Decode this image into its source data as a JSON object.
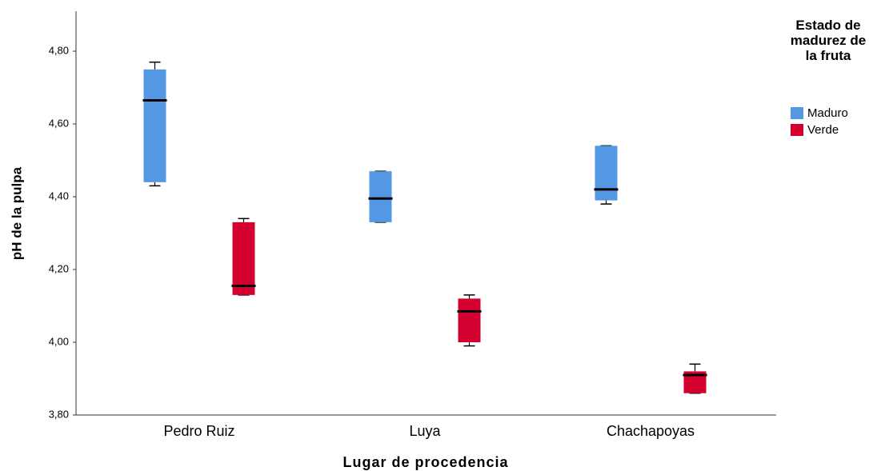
{
  "chart_data": {
    "type": "box",
    "xlabel": "Lugar de procedencia",
    "ylabel": "pH de la pulpa",
    "categories": [
      "Pedro Ruiz",
      "Luya",
      "Chachapoyas"
    ],
    "legend_title": "Estado de madurez de la fruta",
    "legend_position": "upper right",
    "ylim": [
      3.8,
      4.91
    ],
    "yticks": [
      {
        "value": 3.8,
        "label": "3,80"
      },
      {
        "value": 4.0,
        "label": "4,00"
      },
      {
        "value": 4.2,
        "label": "4,20"
      },
      {
        "value": 4.4,
        "label": "4,40"
      },
      {
        "value": 4.6,
        "label": "4,60"
      },
      {
        "value": 4.8,
        "label": "4,80"
      }
    ],
    "series": [
      {
        "name": "Maduro",
        "color": "#5497e3",
        "values": [
          {
            "min": 4.43,
            "q1": 4.44,
            "median": 4.665,
            "q3": 4.75,
            "max": 4.77
          },
          {
            "min": 4.33,
            "q1": 4.33,
            "median": 4.395,
            "q3": 4.47,
            "max": 4.47
          },
          {
            "min": 4.38,
            "q1": 4.39,
            "median": 4.42,
            "q3": 4.54,
            "max": 4.54
          }
        ]
      },
      {
        "name": "Verde",
        "color": "#d4002f",
        "values": [
          {
            "min": 4.13,
            "q1": 4.13,
            "median": 4.155,
            "q3": 4.33,
            "max": 4.34
          },
          {
            "min": 3.99,
            "q1": 4.0,
            "median": 4.085,
            "q3": 4.12,
            "max": 4.13
          },
          {
            "min": 3.86,
            "q1": 3.86,
            "median": 3.91,
            "q3": 3.92,
            "max": 3.94
          }
        ]
      }
    ]
  }
}
